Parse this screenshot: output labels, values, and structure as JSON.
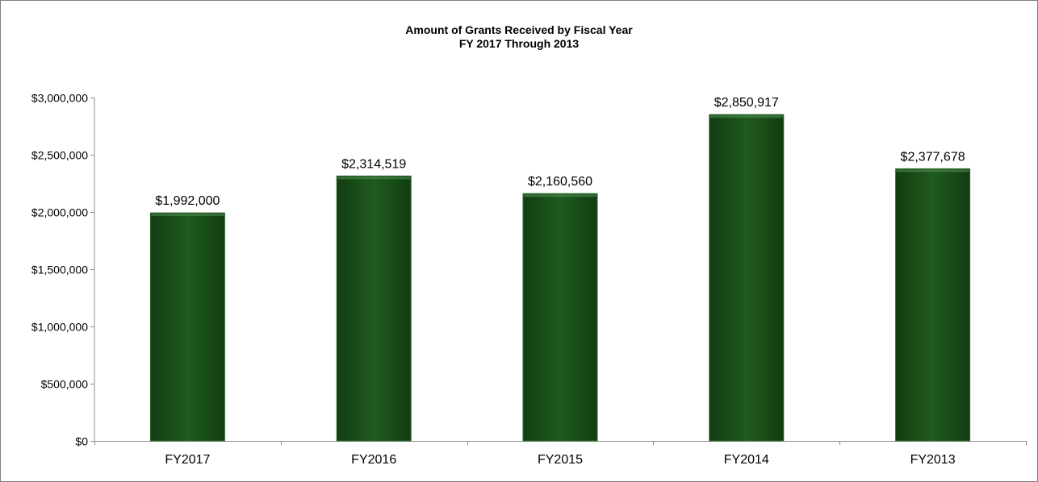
{
  "chart_data": {
    "type": "bar",
    "title": "Amount of Grants Received by Fiscal Year",
    "subtitle": "FY 2017 Through 2013",
    "xlabel": "",
    "ylabel": "",
    "categories": [
      "FY2017",
      "FY2016",
      "FY2015",
      "FY2014",
      "FY2013"
    ],
    "values": [
      1992000,
      2314519,
      2160560,
      2850917,
      2377678
    ],
    "data_labels": [
      "$1,992,000",
      "$2,314,519",
      "$2,160,560",
      "$2,850,917",
      "$2,377,678"
    ],
    "ylim": [
      0,
      3000000
    ],
    "yticks": [
      0,
      500000,
      1000000,
      1500000,
      2000000,
      2500000,
      3000000
    ],
    "ytick_labels": [
      "$0",
      "$500,000",
      "$1,000,000",
      "$1,500,000",
      "$2,000,000",
      "$2,500,000",
      "$3,000,000"
    ],
    "grid": false,
    "legend": "none",
    "bar_color": "#1b4d1b",
    "bar_edge_color": "#2e6b2e"
  }
}
